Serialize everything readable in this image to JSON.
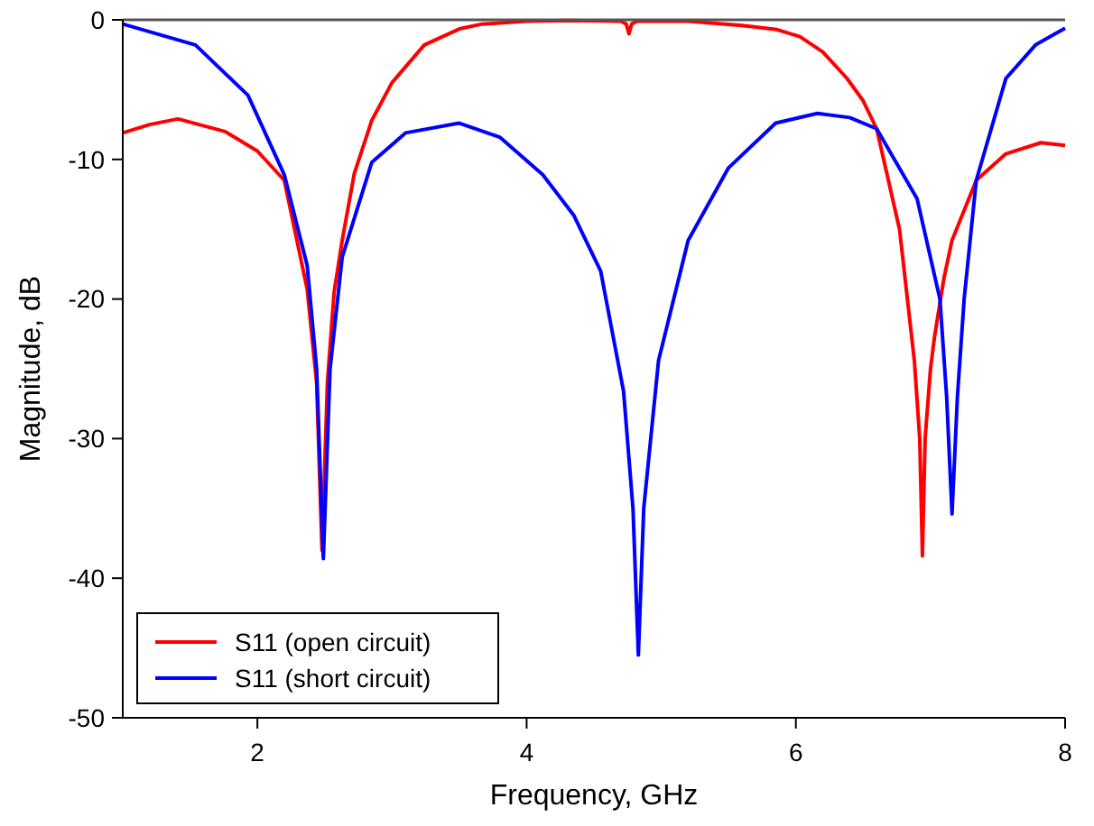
{
  "chart_data": {
    "type": "line",
    "xlabel": "Frequency, GHz",
    "ylabel": "Magnitude, dB",
    "xlim": [
      1,
      8
    ],
    "ylim": [
      -50,
      0
    ],
    "xticks": [
      2,
      4,
      6,
      8
    ],
    "yticks": [
      -50,
      -40,
      -30,
      -20,
      -10,
      0
    ],
    "grid": false,
    "legend": "bottom left",
    "marker": "none",
    "line_style": "solid",
    "series": [
      {
        "name": "S11 (open circuit)",
        "color": "#ff0000",
        "x": [
          1,
          1.2,
          1.41,
          1.76,
          2.0,
          2.2,
          2.37,
          2.44,
          2.48,
          2.52,
          2.57,
          2.63,
          2.72,
          2.85,
          3.0,
          3.24,
          3.5,
          3.67,
          4.0,
          4.3,
          4.7,
          4.74,
          4.76,
          4.78,
          4.82,
          5.2,
          5.6,
          5.86,
          6.03,
          6.2,
          6.38,
          6.5,
          6.6,
          6.77,
          6.88,
          6.92,
          6.94,
          6.96,
          7.0,
          7.03,
          7.1,
          7.16,
          7.34,
          7.56,
          7.82,
          8.0
        ],
        "values": [
          -8.1,
          -7.5,
          -7.1,
          -8.0,
          -9.4,
          -11.5,
          -19.3,
          -26,
          -38,
          -26,
          -19.5,
          -15.8,
          -11,
          -7.2,
          -4.5,
          -1.8,
          -0.65,
          -0.3,
          -0.1,
          -0.05,
          -0.1,
          -0.3,
          -1.0,
          -0.3,
          -0.1,
          -0.1,
          -0.4,
          -0.7,
          -1.2,
          -2.3,
          -4.2,
          -5.8,
          -7.8,
          -15,
          -24.4,
          -30,
          -38.4,
          -30,
          -25,
          -22.7,
          -18.5,
          -15.8,
          -11.5,
          -9.6,
          -8.8,
          -9.0
        ]
      },
      {
        "name": "S11 (short circuit)",
        "color": "#0000ff",
        "x": [
          1,
          1.54,
          1.93,
          2.2,
          2.37,
          2.44,
          2.49,
          2.54,
          2.63,
          2.85,
          3.1,
          3.5,
          3.8,
          4.12,
          4.35,
          4.55,
          4.72,
          4.79,
          4.83,
          4.87,
          4.98,
          5.2,
          5.5,
          5.85,
          6.16,
          6.4,
          6.6,
          6.9,
          7.07,
          7.12,
          7.16,
          7.2,
          7.25,
          7.34,
          7.56,
          7.78,
          8.0
        ],
        "values": [
          -0.3,
          -1.8,
          -5.4,
          -11.1,
          -17.6,
          -25,
          -38.6,
          -25,
          -17,
          -10.2,
          -8.1,
          -7.4,
          -8.4,
          -11.1,
          -14,
          -18,
          -26.6,
          -35,
          -45.5,
          -35,
          -24.4,
          -15.8,
          -10.6,
          -7.4,
          -6.7,
          -7.0,
          -7.8,
          -12.8,
          -20,
          -27,
          -35.4,
          -27,
          -20,
          -11.5,
          -4.2,
          -1.8,
          -0.6
        ]
      }
    ]
  }
}
